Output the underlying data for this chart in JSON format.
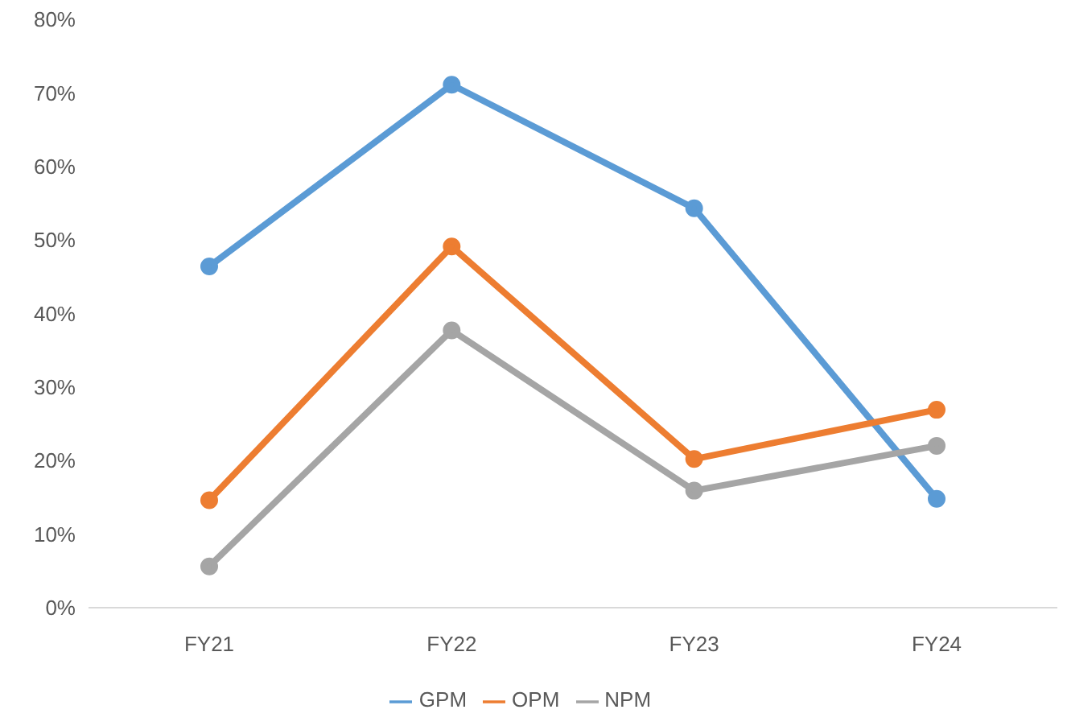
{
  "chart_data": {
    "type": "line",
    "categories": [
      "FY21",
      "FY22",
      "FY23",
      "FY24"
    ],
    "series": [
      {
        "name": "GPM",
        "color": "#5b9bd5",
        "values": [
          46.4,
          71.1,
          54.3,
          14.8
        ]
      },
      {
        "name": "OPM",
        "color": "#ed7d31",
        "values": [
          14.6,
          49.1,
          20.2,
          26.9
        ]
      },
      {
        "name": "NPM",
        "color": "#a5a5a5",
        "values": [
          5.6,
          37.7,
          15.9,
          22.0
        ]
      }
    ],
    "ylim": [
      0,
      80
    ],
    "yticks": [
      {
        "value": 0,
        "label": "0%"
      },
      {
        "value": 10,
        "label": "10%"
      },
      {
        "value": 20,
        "label": "20%"
      },
      {
        "value": 30,
        "label": "30%"
      },
      {
        "value": 40,
        "label": "40%"
      },
      {
        "value": 50,
        "label": "50%"
      },
      {
        "value": 60,
        "label": "60%"
      },
      {
        "value": 70,
        "label": "70%"
      },
      {
        "value": 80,
        "label": "80%"
      }
    ],
    "grid": false,
    "legend": "bottom",
    "marker": "circle",
    "line_style": "solid"
  }
}
